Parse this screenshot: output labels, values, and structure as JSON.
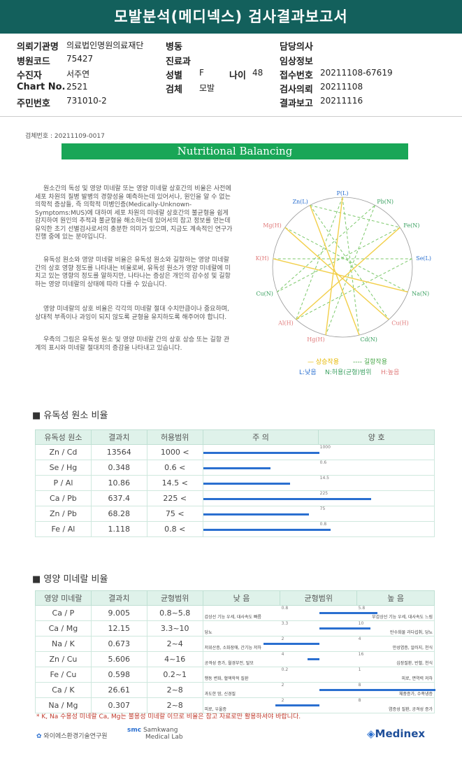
{
  "report_title": "모발분석(메디넥스) 검사결과보고서",
  "info": {
    "rows": [
      [
        {
          "label": "의뢰기관명",
          "value": "의료법인명원의료재단"
        },
        {
          "label": "병동",
          "value": ""
        },
        {
          "label": "담당의사",
          "value": ""
        }
      ],
      [
        {
          "label": "병원코드",
          "value": "75427"
        },
        {
          "label": "진료과",
          "value": ""
        },
        {
          "label": "임상정보",
          "value": ""
        }
      ],
      [
        {
          "label": "수진자",
          "value": "서주연"
        },
        {
          "label": "성별",
          "value": "F"
        },
        {
          "label": "접수번호",
          "value": "20211108-67619"
        }
      ],
      [
        {
          "label": "Chart No.",
          "value": "2521"
        },
        {
          "label": "검체",
          "value": "모발"
        },
        {
          "label": "검사의뢰",
          "value": "20211108"
        }
      ],
      [
        {
          "label": "주민번호",
          "value": "731010-2"
        },
        {
          "label": "",
          "value": ""
        },
        {
          "label": "결과보고",
          "value": "20211116"
        }
      ]
    ],
    "age_label": "나이",
    "age_value": "48"
  },
  "serial": "검체번호 : 20211109-0017",
  "section_title": "Nutritional Balancing",
  "paragraphs": [
    "원소간의 독성 및 영양 미네랄 또는 영양 미네랄 상호간의 비율은 사전에 세포 차원의 질병 발병의 경향성을 예측하는데 있어서나, 원인을 알 수 없는 의학적 증상들, 즉 의학적 미병인증(Medically-Unknown-Symptoms:MUS)에 대하여 세포 차원의 미네랄 상호간의 불균형을 쉽게 감지하여 원인의 추적과 불균형을 해소하는데 있어서의 참고 정보를 얻는데 유익한 초기 선별검사로서의 충분한 의미가 있으며, 지금도 계속적인 연구가 진행 중에 있는 분야입니다.",
    "유독성 원소와 영양 미네랄 비율은 유독성 원소와 길항하는 영양 미네랄 간의 상호 영향 정도를 나타내는 비율로써, 유독성 원소가 영양 미네랄에 미치고 있는 영향의 정도를 알하지만, 나타나는 증상은 개인의 감수성 및 길항하는 영양 미네랄의 상태에 따라 다를 수 있습니다.",
    "영양 미네랄의 상호 비율은 각각의 미네랄 절대 수치만큼이나 중요하며, 상대적 부족이나 과잉이 되지 않도록 균형을 유지하도록 해주어야 합니다.",
    "우측의 그림은 유독성 원소 및 영양 미네랄 간의 상호 상승 또는 길항 관계의 표시와 미네랄 절대치의 증감을 나타내고 있습니다."
  ],
  "wheel": {
    "nodes": [
      "P(L)",
      "Pb(N)",
      "Fe(N)",
      "Se(L)",
      "Na(N)",
      "Cu(H)",
      "Cd(N)",
      "Hg(H)",
      "Al(H)",
      "Cu(N)",
      "K(H)",
      "Mg(H)",
      "Zn(L)"
    ],
    "legend": {
      "sync": "상승작용",
      "antag": "길항작용",
      "low": "L:낮음",
      "normal": "N:허용(균형)범위",
      "high": "H:높음"
    }
  },
  "toxic": {
    "title": "■ 유독성 원소 비율",
    "headers": [
      "유독성 원소",
      "결과치",
      "허용범위",
      "주 의",
      "양 호"
    ],
    "rows": [
      {
        "name": "Zn / Cd",
        "value": "13564",
        "range": "1000 <",
        "ref": "1000",
        "frac": 1.0
      },
      {
        "name": "Se / Hg",
        "value": "0.348",
        "range": "0.6 <",
        "ref": "0.6",
        "frac": 0.58
      },
      {
        "name": "P / Al",
        "value": "10.86",
        "range": "14.5 <",
        "ref": "14.5",
        "frac": 0.75
      },
      {
        "name": "Ca / Pb",
        "value": "637.4",
        "range": "225 <",
        "ref": "225",
        "frac": 1.45
      },
      {
        "name": "Zn / Pb",
        "value": "68.28",
        "range": "75 <",
        "ref": "75",
        "frac": 0.91
      },
      {
        "name": "Fe / Al",
        "value": "1.118",
        "range": "0.8 <",
        "ref": "0.8",
        "frac": 1.1
      }
    ]
  },
  "nutri": {
    "title": "■ 영양 미네랄 비율",
    "headers": [
      "영양 미네랄",
      "결과치",
      "균형범위",
      "낮 음",
      "균형범위",
      "높 음"
    ],
    "rows": [
      {
        "name": "Ca / P",
        "value": "9.005",
        "range": "0.8~5.8",
        "low": "0.8",
        "high": "5.8",
        "low_note": "갑상선 기능 우세, 대사속도 빠름",
        "high_note": "부갑상선 기능 우세, 대사속도 느림",
        "pos": 0.75
      },
      {
        "name": "Ca / Mg",
        "value": "12.15",
        "range": "3.3~10",
        "low": "3.3",
        "high": "10",
        "low_note": "당뇨",
        "high_note": "탄수화물 과다섭취, 당뇨",
        "pos": 0.72
      },
      {
        "name": "Na / K",
        "value": "0.673",
        "range": "2~4",
        "low": "2",
        "high": "4",
        "low_note": "저위산증, 소화장애, 간기능 저하",
        "high_note": "만성염증, 알러지, 천식",
        "pos": 0.26
      },
      {
        "name": "Zn / Cu",
        "value": "5.606",
        "range": "4~16",
        "low": "4",
        "high": "16",
        "low_note": "공격성 증가, 월경부전, 탈모",
        "high_note": "심장질환, 빈혈, 천식",
        "pos": 0.45
      },
      {
        "name": "Fe / Cu",
        "value": "0.598",
        "range": "0.2~1",
        "low": "0.2",
        "high": "1",
        "low_note": "행동 변화, 혈액학적 질환",
        "high_note": "피로, 면역력 저하",
        "pos": 0.5
      },
      {
        "name": "Ca / K",
        "value": "26.61",
        "range": "2~8",
        "low": "2",
        "high": "8",
        "low_note": "과도한 땀, 신경질",
        "high_note": "체중증가, 수족냉증",
        "pos": 1.0
      },
      {
        "name": "Na / Mg",
        "value": "0.307",
        "range": "2~8",
        "low": "2",
        "high": "8",
        "low_note": "피로, 우울증",
        "high_note": "염증성 질환, 공격성 증가",
        "pos": 0.31
      }
    ]
  },
  "footnote": "* K, Na 수용성 미네랄 Ca, Mg는 불용성 미네랄 이므로 비율은 참고 자료로만 활용하셔야 바랍니다.",
  "logos": {
    "a": "와이에스환경기술연구원",
    "b1": "Samkwang",
    "b2": "Medical Lab",
    "c": "Medinex"
  },
  "colors": {
    "banner": "#13605c",
    "title_bar": "#19a657",
    "bar": "#2a6fd0",
    "sync": "#f2cf4a",
    "antag": "#7cc86b"
  }
}
